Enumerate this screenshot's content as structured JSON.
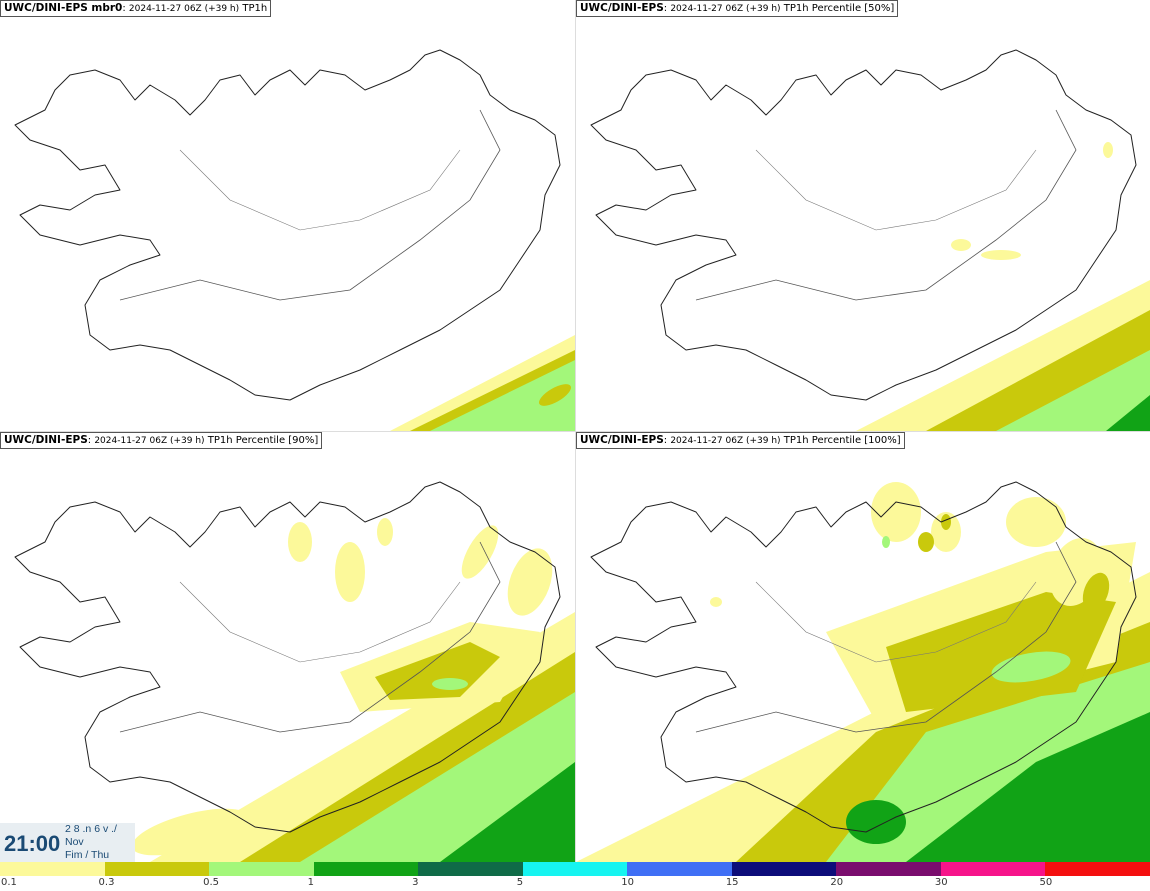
{
  "panels": [
    {
      "model": "UWC/DINI-EPS mbr0",
      "detail": "2024-11-27 06Z (+39 h)",
      "param": "TP1h"
    },
    {
      "model": "UWC/DINI-EPS",
      "detail": "2024-11-27 06Z (+39 h)",
      "param": "TP1h Percentile [50%]"
    },
    {
      "model": "UWC/DINI-EPS",
      "detail": "2024-11-27 06Z (+39 h)",
      "param": "TP1h Percentile [90%]"
    },
    {
      "model": "UWC/DINI-EPS",
      "detail": "2024-11-27 06Z (+39 h)",
      "param": "TP1h Percentile [100%]"
    }
  ],
  "time": {
    "clock": "21:00",
    "line1": "2 8 .n 6 v ./",
    "line2": "Nov",
    "line3": "Fim / Thu"
  },
  "legend": {
    "colors": [
      "#fcf99a",
      "#c9c90c",
      "#a3f77a",
      "#11a316",
      "#0f6b47",
      "#16f4f0",
      "#3f6ff5",
      "#0d0d7a",
      "#7a0d6e",
      "#f6148a",
      "#f40f0f"
    ],
    "labels": [
      "0.1",
      "0.3",
      "0.5",
      "1",
      "3",
      "5",
      "10",
      "15",
      "20",
      "30",
      "50"
    ]
  }
}
